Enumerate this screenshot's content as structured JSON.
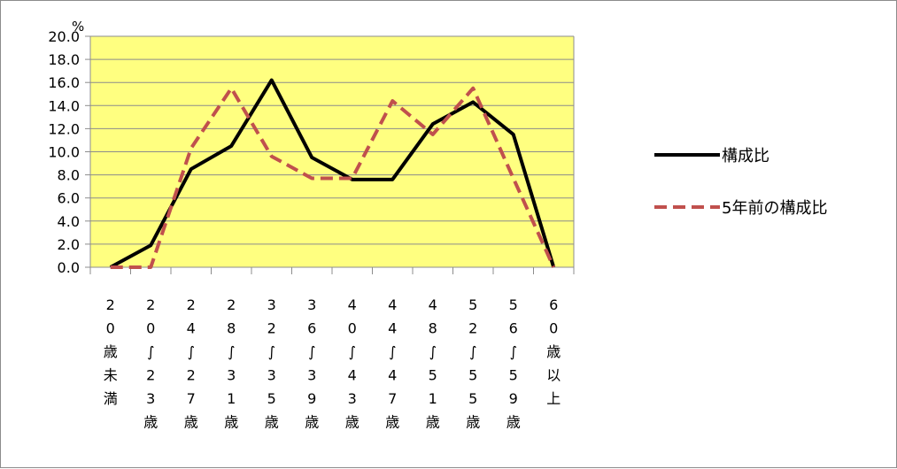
{
  "chart_data": {
    "type": "line",
    "ylabel": "%",
    "ylim": [
      0,
      20
    ],
    "yticks": [
      "0.0",
      "2.0",
      "4.0",
      "6.0",
      "8.0",
      "10.0",
      "12.0",
      "14.0",
      "16.0",
      "18.0",
      "20.0"
    ],
    "categories": [
      "20歳未満",
      "20～23歳",
      "24～27歳",
      "28～31歳",
      "32～35歳",
      "36～39歳",
      "40～43歳",
      "44～47歳",
      "48～51歳",
      "52～55歳",
      "56～59歳",
      "60歳以上"
    ],
    "series": [
      {
        "name": "構成比",
        "color": "#000000",
        "style": "solid",
        "values": [
          0.0,
          1.9,
          8.5,
          10.5,
          16.2,
          9.5,
          7.6,
          7.6,
          12.4,
          14.3,
          11.5,
          0.0
        ]
      },
      {
        "name": "5年前の構成比",
        "color": "#c0504d",
        "style": "dashed",
        "values": [
          0.0,
          0.0,
          10.3,
          15.5,
          9.6,
          7.7,
          7.7,
          14.4,
          11.5,
          15.5,
          7.7,
          0.0
        ]
      }
    ],
    "plot_background": "#ffff80",
    "grid": true,
    "legend_position": "right"
  }
}
